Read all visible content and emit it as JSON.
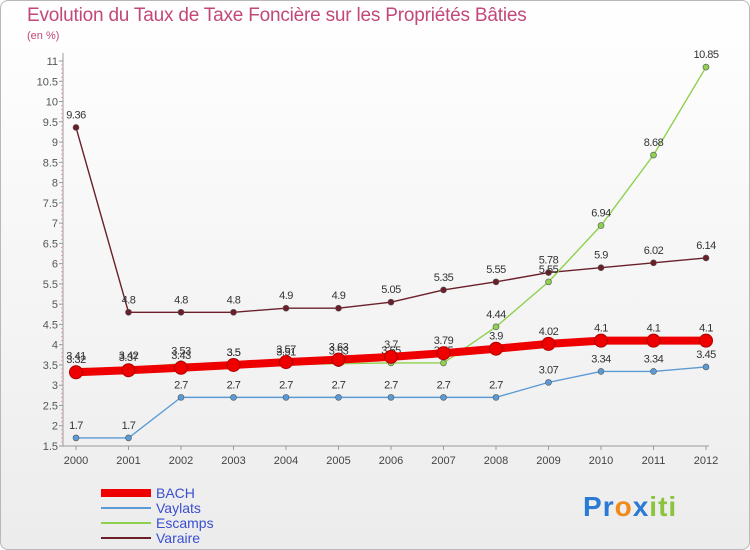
{
  "chart_data": {
    "type": "line",
    "title": "Evolution du Taux de Taxe Foncière sur les Propriétés Bâties",
    "subtitle": "(en %)",
    "xlabel": "",
    "ylabel": "(en %)",
    "ylim": [
      1.5,
      11
    ],
    "yticks": [
      "1.5",
      "2",
      "2.5",
      "3",
      "3.5",
      "4",
      "4.5",
      "5",
      "5.5",
      "6",
      "6.5",
      "7",
      "7.5",
      "8",
      "8.5",
      "9",
      "9.5",
      "10",
      "10.5",
      "11"
    ],
    "x": [
      "2000",
      "2001",
      "2002",
      "2003",
      "2004",
      "2005",
      "2006",
      "2007",
      "2008",
      "2009",
      "2010",
      "2011",
      "2012"
    ],
    "series": [
      {
        "name": "Varaire",
        "color": "#6b1f2a",
        "values": [
          9.36,
          4.8,
          4.8,
          4.8,
          4.9,
          4.9,
          5.05,
          5.35,
          5.55,
          5.78,
          5.9,
          6.02,
          6.14
        ],
        "labels": [
          "9.36",
          "4.8",
          "4.8",
          "4.8",
          "4.9",
          "4.9",
          "5.05",
          "5.35",
          "5.55",
          "5.78",
          "5.9",
          "6.02",
          "6.14"
        ]
      },
      {
        "name": "Escamps",
        "color": "#8fd14f",
        "values": [
          3.41,
          3.42,
          3.53,
          3.5,
          3.51,
          3.53,
          3.55,
          3.55,
          4.44,
          5.55,
          6.94,
          8.68,
          10.85
        ],
        "labels": [
          "3.41",
          "3.42",
          "3.53",
          "3.5",
          "3.51",
          "3.53",
          "3.55",
          "3.55",
          "4.44",
          "5.55",
          "6.94",
          "8.68",
          "10.85"
        ]
      },
      {
        "name": "Vaylats",
        "color": "#5b9bd5",
        "values": [
          1.7,
          1.7,
          2.7,
          2.7,
          2.7,
          2.7,
          2.7,
          2.7,
          2.7,
          3.07,
          3.34,
          3.34,
          3.45
        ],
        "labels": [
          "1.7",
          "1.7",
          "2.7",
          "2.7",
          "2.7",
          "2.7",
          "2.7",
          "2.7",
          "2.7",
          "3.07",
          "3.34",
          "3.34",
          "3.45"
        ]
      },
      {
        "name": "BACH",
        "color": "#ee0000",
        "values": [
          3.32,
          3.37,
          3.43,
          3.5,
          3.57,
          3.63,
          3.7,
          3.79,
          3.9,
          4.02,
          4.1,
          4.1,
          4.1
        ],
        "labels": [
          "3.32",
          "3.37",
          "3.43",
          "3.5",
          "3.57",
          "3.63",
          "3.7",
          "3.79",
          "3.9",
          "4.02",
          "4.1",
          "4.1",
          "4.1"
        ]
      }
    ],
    "legend": [
      "BACH",
      "Vaylats",
      "Escamps",
      "Varaire"
    ],
    "legend_position": "bottom-left",
    "grid": false
  },
  "brand": {
    "letters": [
      "P",
      "r",
      "o",
      "x",
      "i",
      "t",
      "i"
    ],
    "colors": [
      "#2b7bd6",
      "#2b7bd6",
      "#f08a1a",
      "#2b7bd6",
      "#8cc43f",
      "#8cc43f",
      "#8cc43f"
    ]
  }
}
